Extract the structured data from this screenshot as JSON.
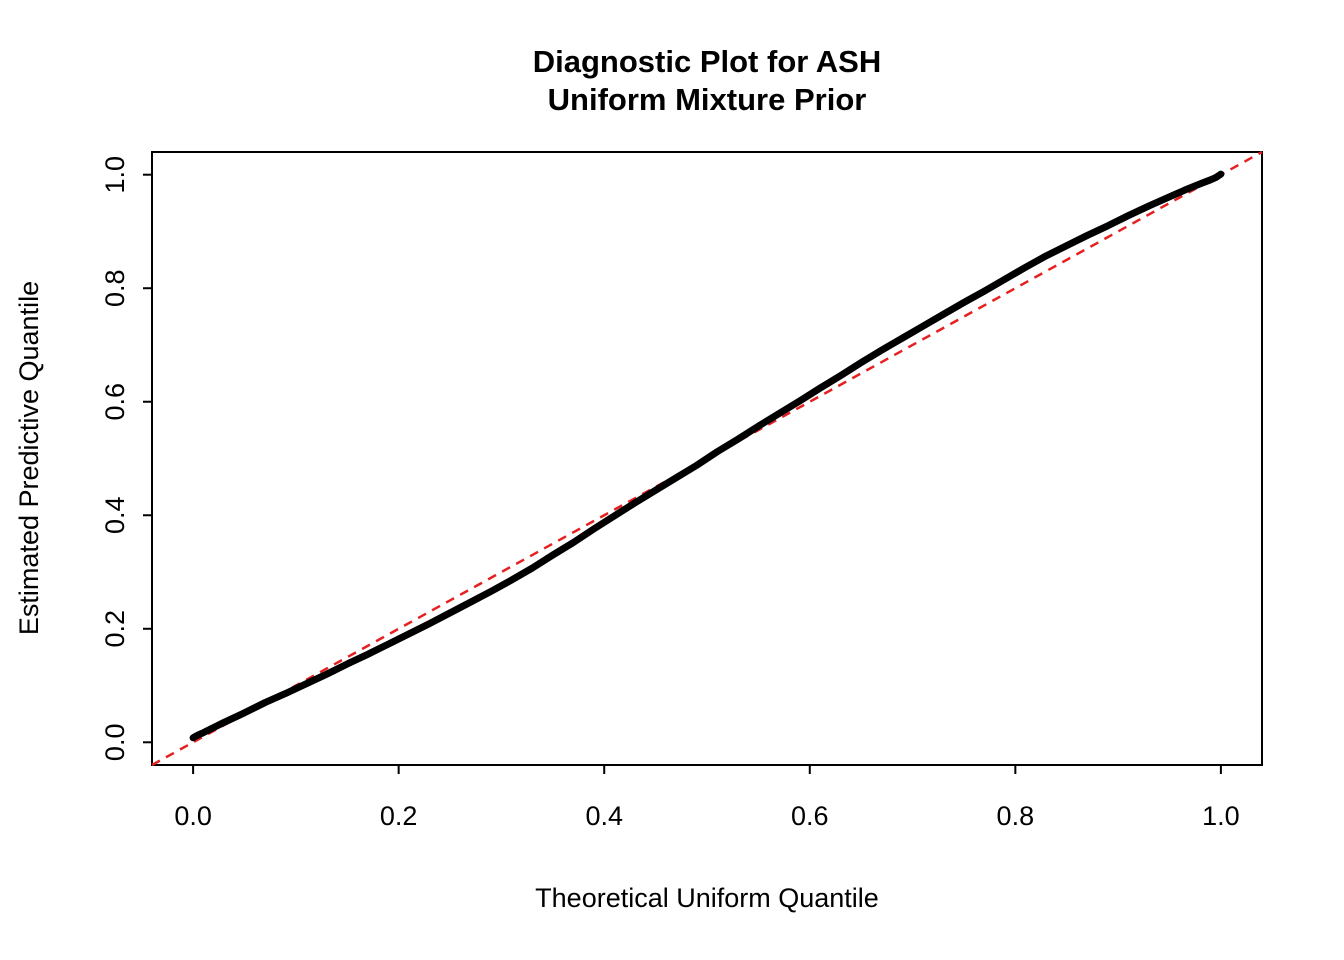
{
  "title": {
    "line1": "Diagnostic Plot for ASH",
    "line2": "Uniform Mixture Prior"
  },
  "chart_data": {
    "type": "scatter",
    "title": "Diagnostic Plot for ASH Uniform Mixture Prior",
    "xlabel": "Theoretical Uniform Quantile",
    "ylabel": "Estimated Predictive Quantile",
    "xlim": [
      -0.04,
      1.04
    ],
    "ylim": [
      -0.04,
      1.04
    ],
    "grid": false,
    "x_ticks": {
      "values": [
        0.0,
        0.2,
        0.4,
        0.6,
        0.8,
        1.0
      ],
      "labels": [
        "0.0",
        "0.2",
        "0.4",
        "0.6",
        "0.8",
        "1.0"
      ]
    },
    "y_ticks": {
      "values": [
        0.0,
        0.2,
        0.4,
        0.6,
        0.8,
        1.0
      ],
      "labels": [
        "0.0",
        "0.2",
        "0.4",
        "0.6",
        "0.8",
        "1.0"
      ]
    },
    "series": [
      {
        "name": "estimated-vs-theoretical-quantiles",
        "color": "#000000",
        "x": [
          0.0,
          0.002,
          0.005,
          0.01,
          0.02,
          0.03,
          0.05,
          0.07,
          0.09,
          0.11,
          0.13,
          0.15,
          0.17,
          0.19,
          0.21,
          0.23,
          0.25,
          0.27,
          0.29,
          0.31,
          0.33,
          0.35,
          0.37,
          0.39,
          0.41,
          0.43,
          0.45,
          0.47,
          0.49,
          0.51,
          0.53,
          0.55,
          0.57,
          0.59,
          0.61,
          0.63,
          0.65,
          0.67,
          0.69,
          0.71,
          0.73,
          0.75,
          0.77,
          0.79,
          0.81,
          0.83,
          0.85,
          0.87,
          0.89,
          0.91,
          0.93,
          0.95,
          0.965,
          0.98,
          0.99,
          0.995,
          1.0
        ],
        "y": [
          0.008,
          0.01,
          0.013,
          0.017,
          0.026,
          0.035,
          0.052,
          0.07,
          0.086,
          0.103,
          0.12,
          0.138,
          0.155,
          0.173,
          0.191,
          0.209,
          0.228,
          0.247,
          0.266,
          0.286,
          0.307,
          0.33,
          0.352,
          0.376,
          0.399,
          0.422,
          0.444,
          0.466,
          0.488,
          0.512,
          0.534,
          0.557,
          0.579,
          0.601,
          0.624,
          0.646,
          0.669,
          0.691,
          0.712,
          0.733,
          0.754,
          0.775,
          0.795,
          0.816,
          0.837,
          0.857,
          0.875,
          0.893,
          0.91,
          0.928,
          0.945,
          0.961,
          0.973,
          0.984,
          0.991,
          0.995,
          1.001
        ]
      }
    ],
    "reference_line": {
      "intercept": 0,
      "slope": 1,
      "color": "#e62020",
      "style": "dashed"
    }
  }
}
